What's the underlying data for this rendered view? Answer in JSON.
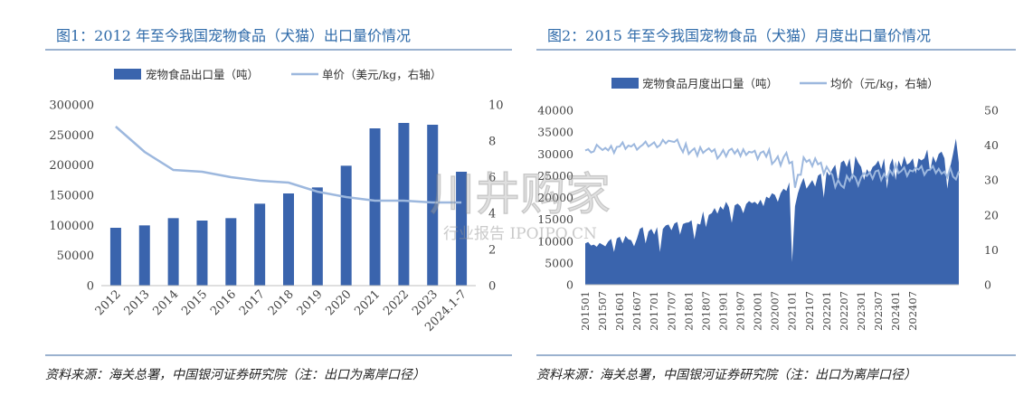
{
  "left": {
    "title": "图1：2012 年至今我国宠物食品（犬猫）出口量价情况",
    "source": "资料来源：海关总署，中国银河证券研究院（注：出口为离岸口径）",
    "legend_bar": "宠物食品出口量（吨）",
    "legend_line": "单价（美元/kg，右轴）"
  },
  "right": {
    "title": "图2：2015 年至今我国宠物食品（犬猫）月度出口量价情况",
    "source": "资料来源：海关总署，中国银河证券研究院（注：出口为离岸口径）",
    "legend_area": "宠物食品月度出口量（吨）",
    "legend_line": "均价（元/kg，右轴）"
  },
  "watermark": {
    "main": "川井购家",
    "sub": "行业报告 IPOIPO.CN"
  },
  "colors": {
    "bar": "#3a64ad",
    "line": "#9db8de",
    "title": "#2e6aa9",
    "rule": "#9bb2cf"
  },
  "chart_data": [
    {
      "type": "bar",
      "categories": [
        "2012",
        "2013",
        "2014",
        "2015",
        "2016",
        "2017",
        "2018",
        "2019",
        "2020",
        "2021",
        "2022",
        "2023",
        "2024.1-7"
      ],
      "series": [
        {
          "name": "宠物食品出口量（吨）",
          "type": "bar",
          "axis": "left",
          "values": [
            96000,
            100000,
            112000,
            108000,
            112000,
            136000,
            153000,
            163000,
            199000,
            261000,
            270000,
            267000,
            189000
          ]
        },
        {
          "name": "单价（美元/kg，右轴）",
          "type": "line",
          "axis": "right",
          "values": [
            8.8,
            7.4,
            6.4,
            6.3,
            6.0,
            5.8,
            5.7,
            5.2,
            4.9,
            4.7,
            4.7,
            4.6,
            4.6
          ]
        }
      ],
      "ylim": [
        0,
        300000
      ],
      "y2lim": [
        0,
        10
      ],
      "yticks": [
        "0",
        "50000",
        "100000",
        "150000",
        "200000",
        "250000",
        "300000"
      ],
      "y2ticks": [
        "0",
        "2",
        "4",
        "6",
        "8",
        "10"
      ],
      "legend": "top"
    },
    {
      "type": "area",
      "start": "201501",
      "xticks": [
        "201501",
        "201507",
        "201601",
        "201607",
        "201701",
        "201707",
        "201801",
        "201807",
        "201901",
        "201907",
        "202001",
        "202007",
        "202101",
        "202107",
        "202201",
        "202207",
        "202301",
        "202307",
        "202401",
        "202407"
      ],
      "series": [
        {
          "name": "宠物食品月度出口量（吨）",
          "type": "area",
          "axis": "left",
          "values": [
            9500,
            9800,
            9000,
            9200,
            8700,
            9600,
            9200,
            8800,
            9900,
            10500,
            7500,
            10600,
            11000,
            9500,
            11200,
            10400,
            10200,
            8800,
            10600,
            12800,
            13200,
            9500,
            12200,
            12800,
            11500,
            13200,
            7500,
            12800,
            13600,
            13800,
            12500,
            14000,
            14400,
            11500,
            13900,
            14200,
            14300,
            14800,
            10400,
            14000,
            13800,
            16800,
            13200,
            16000,
            16400,
            17600,
            16300,
            18000,
            17200,
            19000,
            17800,
            14200,
            18200,
            18600,
            18000,
            16400,
            18500,
            19200,
            18700,
            19000,
            18400,
            19500,
            18000,
            20200,
            19800,
            21000,
            20600,
            19000,
            21000,
            22000,
            21500,
            23500,
            5200,
            18000,
            21000,
            23000,
            24500,
            22000,
            23000,
            24000,
            22500,
            25000,
            25500,
            20000,
            26000,
            25000,
            26500,
            27500,
            23500,
            28000,
            28500,
            27000,
            29000,
            24000,
            29500,
            28000,
            27000,
            24000,
            26500,
            25500,
            27000,
            27500,
            28500,
            26500,
            29000,
            22000,
            27500,
            29000,
            24000,
            28500,
            27000,
            29500,
            27500,
            28000,
            29000,
            25500,
            29000,
            28500,
            29000,
            31000,
            26000,
            29500,
            28000,
            30000,
            30500,
            29000,
            22000,
            27000,
            30000,
            33500,
            28000
          ]
        },
        {
          "name": "均价（元/kg，右轴）",
          "type": "line",
          "axis": "right",
          "values": [
            38.5,
            38.8,
            37.9,
            38.2,
            40.1,
            39.3,
            38.6,
            39.2,
            38.5,
            39.8,
            37.8,
            39.5,
            39.6,
            40.8,
            38.9,
            39.9,
            39.6,
            40.3,
            38.7,
            39.5,
            40.1,
            41.0,
            39.6,
            40.2,
            40.8,
            39.4,
            40.0,
            41.5,
            40.5,
            41.3,
            41.1,
            40.9,
            41.6,
            39.5,
            38.0,
            40.4,
            37.5,
            38.4,
            39.1,
            37.0,
            39.4,
            37.8,
            38.5,
            39.1,
            38.1,
            38.8,
            36.2,
            37.2,
            38.6,
            36.8,
            38.5,
            39.0,
            37.6,
            38.7,
            36.9,
            38.8,
            37.2,
            38.1,
            37.9,
            38.4,
            36.0,
            37.8,
            38.2,
            36.7,
            38.7,
            34.6,
            35.5,
            36.8,
            34.2,
            36.5,
            37.8,
            34.8,
            35.2,
            27.8,
            31.5,
            31.5,
            36.5,
            35.2,
            35.8,
            34.0,
            36.2,
            34.5,
            35.0,
            31.8,
            33.8,
            32.5,
            31.5,
            28.0,
            30.0,
            28.5,
            27.8,
            31.2,
            29.8,
            31.5,
            30.8,
            28.5,
            30.8,
            32.0,
            31.2,
            32.2,
            30.4,
            32.5,
            32.8,
            30.0,
            31.8,
            30.5,
            32.8,
            31.5,
            34.5,
            32.0,
            32.6,
            33.6,
            31.2,
            32.8,
            32.5,
            33.5,
            33.0,
            34.0,
            31.5,
            32.8,
            33.0,
            34.0,
            32.0,
            33.2,
            31.8,
            32.4,
            30.8,
            33.5,
            31.0,
            30.2,
            32.5
          ]
        }
      ],
      "ylim": [
        0,
        40000
      ],
      "y2lim": [
        0,
        50
      ],
      "yticks": [
        "0",
        "5000",
        "10000",
        "15000",
        "20000",
        "25000",
        "30000",
        "35000",
        "40000"
      ],
      "y2ticks": [
        "0",
        "10",
        "20",
        "30",
        "40",
        "50"
      ],
      "legend": "top"
    }
  ]
}
